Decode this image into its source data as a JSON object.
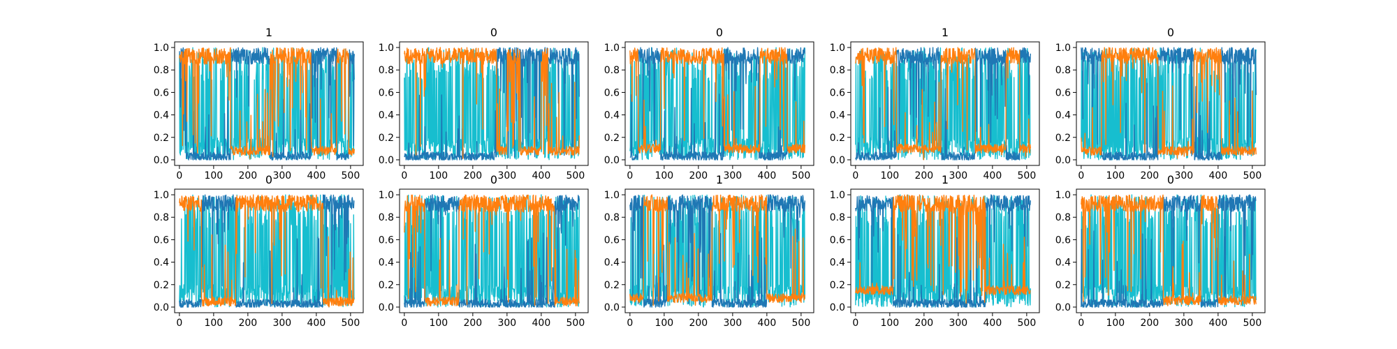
{
  "chart_data": [
    {
      "type": "line",
      "title": "1",
      "xlim": [
        -14,
        537
      ],
      "ylim": [
        -0.05,
        1.05
      ],
      "xticks": [
        0,
        100,
        200,
        300,
        400,
        500
      ],
      "yticks": [
        0.0,
        0.2,
        0.4,
        0.6,
        0.8,
        1.0
      ],
      "grid": false,
      "x_points": 512,
      "series": [
        {
          "color": "#17becf",
          "level": 0.85
        },
        {
          "color": "#1f77b4",
          "segments": [
            [
              0,
              20,
              0.85
            ],
            [
              150,
              265,
              0.9
            ],
            [
              385,
              460,
              0.85
            ],
            [
              495,
              512,
              0.8
            ]
          ]
        },
        {
          "color": "#ff7f0e",
          "baseline": 0.08,
          "segments": [
            [
              0,
              150,
              0.9
            ],
            [
              265,
              385,
              0.85
            ],
            [
              460,
              495,
              0.9
            ]
          ]
        }
      ]
    },
    {
      "type": "line",
      "title": "0",
      "xlim": [
        -14,
        537
      ],
      "ylim": [
        -0.05,
        1.05
      ],
      "xticks": [
        0,
        100,
        200,
        300,
        400,
        500
      ],
      "yticks": [
        0.0,
        0.2,
        0.4,
        0.6,
        0.8,
        1.0
      ],
      "grid": false,
      "x_points": 512,
      "series": [
        {
          "color": "#17becf",
          "level": 0.85
        },
        {
          "color": "#1f77b4",
          "segments": [
            [
              270,
              512,
              0.9
            ]
          ]
        },
        {
          "color": "#ff7f0e",
          "baseline": 0.08,
          "segments": [
            [
              0,
              270,
              0.95
            ],
            [
              300,
              340,
              0.6
            ],
            [
              400,
              420,
              0.5
            ]
          ]
        }
      ]
    },
    {
      "type": "line",
      "title": "0",
      "xlim": [
        -14,
        537
      ],
      "ylim": [
        -0.05,
        1.05
      ],
      "xticks": [
        0,
        100,
        200,
        300,
        400,
        500
      ],
      "yticks": [
        0.0,
        0.2,
        0.4,
        0.6,
        0.8,
        1.0
      ],
      "grid": false,
      "x_points": 512,
      "series": [
        {
          "color": "#17becf",
          "level": 0.85
        },
        {
          "color": "#1f77b4",
          "segments": [
            [
              25,
              90,
              0.9
            ],
            [
              275,
              380,
              0.9
            ],
            [
              460,
              512,
              0.9
            ]
          ]
        },
        {
          "color": "#ff7f0e",
          "baseline": 0.1,
          "segments": [
            [
              0,
              25,
              0.8
            ],
            [
              90,
              275,
              0.95
            ],
            [
              380,
              460,
              0.95
            ]
          ]
        }
      ]
    },
    {
      "type": "line",
      "title": "1",
      "xlim": [
        -14,
        537
      ],
      "ylim": [
        -0.05,
        1.05
      ],
      "xticks": [
        0,
        100,
        200,
        300,
        400,
        500
      ],
      "yticks": [
        0.0,
        0.2,
        0.4,
        0.6,
        0.8,
        1.0
      ],
      "grid": false,
      "x_points": 512,
      "series": [
        {
          "color": "#17becf",
          "level": 0.85
        },
        {
          "color": "#1f77b4",
          "segments": [
            [
              120,
              250,
              0.9
            ],
            [
              350,
              440,
              0.85
            ],
            [
              480,
              512,
              0.9
            ]
          ]
        },
        {
          "color": "#ff7f0e",
          "baseline": 0.1,
          "segments": [
            [
              0,
              120,
              0.95
            ],
            [
              250,
              350,
              0.9
            ],
            [
              440,
              480,
              0.9
            ]
          ]
        }
      ]
    },
    {
      "type": "line",
      "title": "0",
      "xlim": [
        -14,
        537
      ],
      "ylim": [
        -0.05,
        1.05
      ],
      "xticks": [
        0,
        100,
        200,
        300,
        400,
        500
      ],
      "yticks": [
        0.0,
        0.2,
        0.4,
        0.6,
        0.8,
        1.0
      ],
      "grid": false,
      "x_points": 512,
      "series": [
        {
          "color": "#17becf",
          "level": 0.85
        },
        {
          "color": "#1f77b4",
          "segments": [
            [
              0,
              60,
              0.8
            ],
            [
              225,
              330,
              0.95
            ],
            [
              410,
              512,
              0.9
            ]
          ]
        },
        {
          "color": "#ff7f0e",
          "baseline": 0.08,
          "segments": [
            [
              60,
              225,
              0.95
            ],
            [
              330,
              410,
              0.9
            ]
          ]
        }
      ]
    },
    {
      "type": "line",
      "title": "0",
      "xlim": [
        -14,
        537
      ],
      "ylim": [
        -0.05,
        1.05
      ],
      "xticks": [
        0,
        100,
        200,
        300,
        400,
        500
      ],
      "yticks": [
        0.0,
        0.2,
        0.4,
        0.6,
        0.8,
        1.0
      ],
      "grid": false,
      "x_points": 512,
      "series": [
        {
          "color": "#17becf",
          "level": 0.85
        },
        {
          "color": "#1f77b4",
          "segments": [
            [
              65,
              165,
              0.95
            ],
            [
              420,
              512,
              0.9
            ]
          ]
        },
        {
          "color": "#ff7f0e",
          "baseline": 0.05,
          "segments": [
            [
              0,
              65,
              0.95
            ],
            [
              165,
              420,
              0.95
            ]
          ]
        }
      ]
    },
    {
      "type": "line",
      "title": "0",
      "xlim": [
        -14,
        537
      ],
      "ylim": [
        -0.05,
        1.05
      ],
      "xticks": [
        0,
        100,
        200,
        300,
        400,
        500
      ],
      "yticks": [
        0.0,
        0.2,
        0.4,
        0.6,
        0.8,
        1.0
      ],
      "grid": false,
      "x_points": 512,
      "series": [
        {
          "color": "#17becf",
          "level": 0.85
        },
        {
          "color": "#1f77b4",
          "segments": [
            [
              60,
              160,
              0.95
            ],
            [
              440,
              512,
              0.9
            ]
          ]
        },
        {
          "color": "#ff7f0e",
          "baseline": 0.05,
          "segments": [
            [
              0,
              60,
              0.9
            ],
            [
              160,
              440,
              0.95
            ]
          ]
        }
      ]
    },
    {
      "type": "line",
      "title": "1",
      "xlim": [
        -14,
        537
      ],
      "ylim": [
        -0.05,
        1.05
      ],
      "xticks": [
        0,
        100,
        200,
        300,
        400,
        500
      ],
      "yticks": [
        0.0,
        0.2,
        0.4,
        0.6,
        0.8,
        1.0
      ],
      "grid": false,
      "x_points": 512,
      "series": [
        {
          "color": "#17becf",
          "level": 0.85
        },
        {
          "color": "#1f77b4",
          "segments": [
            [
              0,
              40,
              0.8
            ],
            [
              110,
              240,
              0.9
            ],
            [
              400,
              512,
              0.95
            ]
          ]
        },
        {
          "color": "#ff7f0e",
          "baseline": 0.08,
          "segments": [
            [
              40,
              110,
              0.9
            ],
            [
              240,
              400,
              0.95
            ]
          ]
        }
      ]
    },
    {
      "type": "line",
      "title": "1",
      "xlim": [
        -14,
        537
      ],
      "ylim": [
        -0.05,
        1.05
      ],
      "xticks": [
        0,
        100,
        200,
        300,
        400,
        500
      ],
      "yticks": [
        0.0,
        0.2,
        0.4,
        0.6,
        0.8,
        1.0
      ],
      "grid": false,
      "x_points": 512,
      "series": [
        {
          "color": "#17becf",
          "level": 0.85
        },
        {
          "color": "#1f77b4",
          "segments": [
            [
              0,
              110,
              0.95
            ],
            [
              380,
              512,
              0.95
            ]
          ]
        },
        {
          "color": "#ff7f0e",
          "baseline": 0.15,
          "segments": [
            [
              110,
              380,
              0.8
            ]
          ]
        }
      ]
    },
    {
      "type": "line",
      "title": "0",
      "xlim": [
        -14,
        537
      ],
      "ylim": [
        -0.05,
        1.05
      ],
      "xticks": [
        0,
        100,
        200,
        300,
        400,
        500
      ],
      "yticks": [
        0.0,
        0.2,
        0.4,
        0.6,
        0.8,
        1.0
      ],
      "grid": false,
      "x_points": 512,
      "series": [
        {
          "color": "#17becf",
          "level": 0.85
        },
        {
          "color": "#1f77b4",
          "segments": [
            [
              240,
              350,
              0.95
            ],
            [
              400,
              512,
              0.9
            ]
          ]
        },
        {
          "color": "#ff7f0e",
          "baseline": 0.06,
          "segments": [
            [
              0,
              240,
              0.95
            ],
            [
              350,
              400,
              0.9
            ]
          ]
        }
      ]
    }
  ]
}
